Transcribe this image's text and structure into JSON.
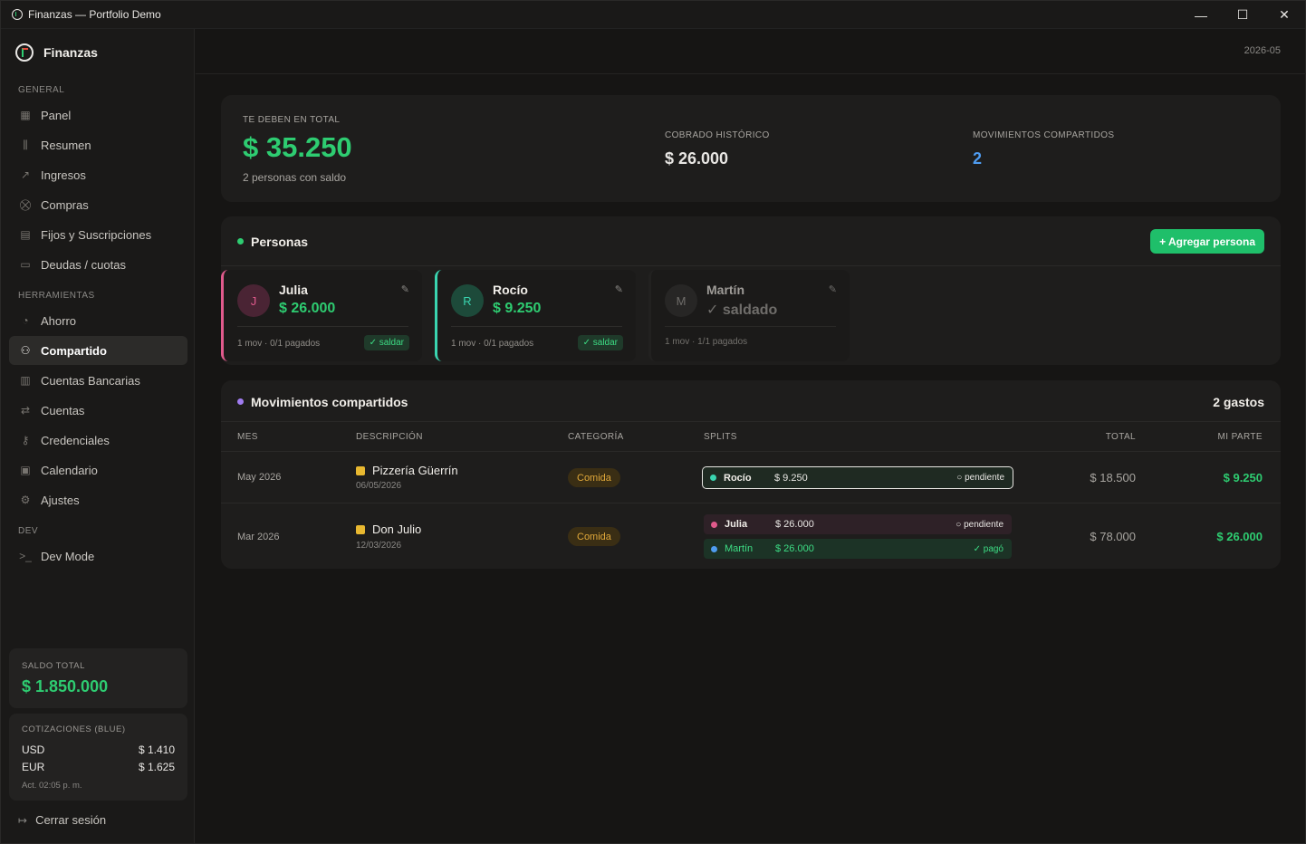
{
  "window": {
    "title": "Finanzas — Portfolio Demo",
    "minimize": "—",
    "maximize": "☐",
    "close": "✕"
  },
  "sidebar": {
    "brand": "Finanzas",
    "sections": {
      "general": "GENERAL",
      "tools": "HERRAMIENTAS",
      "dev": "DEV"
    },
    "items": [
      {
        "label": "Panel",
        "icon": "▦"
      },
      {
        "label": "Resumen",
        "icon": "⫼"
      },
      {
        "label": "Ingresos",
        "icon": "↗"
      },
      {
        "label": "Compras",
        "icon": "⛒"
      },
      {
        "label": "Fijos y Suscripciones",
        "icon": "▤"
      },
      {
        "label": "Deudas / cuotas",
        "icon": "▭"
      },
      {
        "label": "Ahorro",
        "icon": "◔"
      },
      {
        "label": "Compartido",
        "icon": "⚇"
      },
      {
        "label": "Cuentas Bancarias",
        "icon": "▥"
      },
      {
        "label": "Cuentas",
        "icon": "⇄"
      },
      {
        "label": "Credenciales",
        "icon": "⚷"
      },
      {
        "label": "Calendario",
        "icon": "▣"
      },
      {
        "label": "Ajustes",
        "icon": "⚙"
      },
      {
        "label": "Dev Mode",
        "icon": ">_"
      }
    ],
    "balance": {
      "label": "SALDO TOTAL",
      "value": "$ 1.850.000"
    },
    "rates": {
      "label": "COTIZACIONES (BLUE)",
      "usd_label": "USD",
      "usd_value": "$ 1.410",
      "eur_label": "EUR",
      "eur_value": "$ 1.625",
      "updated": "Act. 02:05 p. m."
    },
    "logout": "Cerrar sesión"
  },
  "header": {
    "period": "2026-05"
  },
  "summary": {
    "owed_label": "TE DEBEN EN TOTAL",
    "owed_value": "$ 35.250",
    "owed_sub": "2 personas con saldo",
    "collected_label": "COBRADO HISTÓRICO",
    "collected_value": "$ 26.000",
    "moves_label": "MOVIMIENTOS COMPARTIDOS",
    "moves_value": "2"
  },
  "people": {
    "title": "Personas",
    "add_button": "+ Agregar persona",
    "cards": [
      {
        "initial": "J",
        "name": "Julia",
        "amount": "$ 26.000",
        "meta": "1 mov · 0/1 pagados",
        "action": "✓ saldar"
      },
      {
        "initial": "R",
        "name": "Rocío",
        "amount": "$ 9.250",
        "meta": "1 mov · 0/1 pagados",
        "action": "✓ saldar"
      },
      {
        "initial": "M",
        "name": "Martín",
        "amount": "✓ saldado",
        "meta": "1 mov · 1/1 pagados"
      }
    ]
  },
  "moves": {
    "title": "Movimientos compartidos",
    "count": "2 gastos",
    "columns": {
      "month": "MES",
      "description": "DESCRIPCIÓN",
      "category": "CATEGORÍA",
      "splits": "SPLITS",
      "total": "TOTAL",
      "mine": "MI PARTE"
    },
    "rows": [
      {
        "month": "May 2026",
        "desc": "Pizzería Güerrín",
        "date": "06/05/2026",
        "category": "Comida",
        "splits": [
          {
            "name": "Rocío",
            "amount": "$ 9.250",
            "status": "○ pendiente"
          }
        ],
        "total": "$ 18.500",
        "mine": "$ 9.250"
      },
      {
        "month": "Mar 2026",
        "desc": "Don Julio",
        "date": "12/03/2026",
        "category": "Comida",
        "splits": [
          {
            "name": "Julia",
            "amount": "$ 26.000",
            "status": "○ pendiente"
          },
          {
            "name": "Martín",
            "amount": "$ 26.000",
            "status": "✓ pagó"
          }
        ],
        "total": "$ 78.000",
        "mine": "$ 26.000"
      }
    ]
  }
}
